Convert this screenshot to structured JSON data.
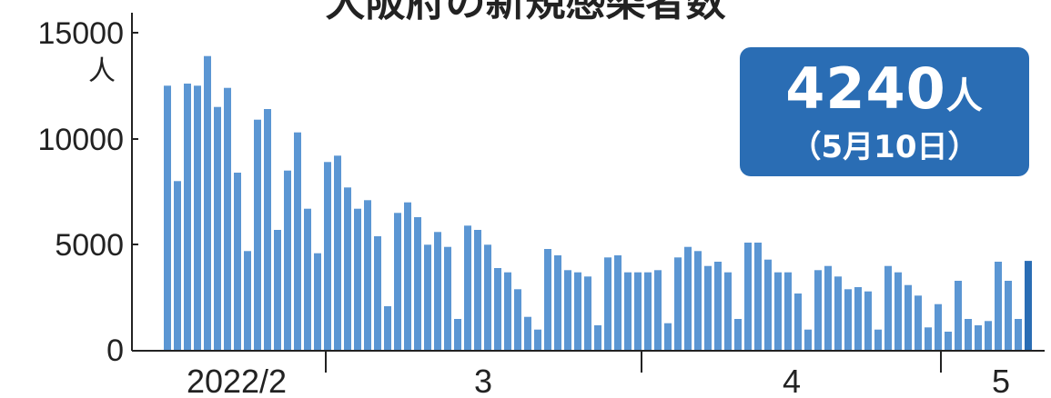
{
  "chart_data": {
    "type": "bar",
    "title": "大阪府の新規感染者数",
    "y_unit": "人",
    "ylim": [
      0,
      15000
    ],
    "yticks": [
      "0",
      "5000",
      "10000",
      "15000"
    ],
    "xtick_labels": [
      "2022/2",
      "3",
      "4",
      "5"
    ],
    "callout": {
      "value": "4240",
      "unit": "人",
      "date": "（5月10日）"
    },
    "series_color": "#5b96d3",
    "highlight_color": "#2a6db4",
    "values": [
      12500,
      8000,
      12600,
      12500,
      13900,
      11500,
      12400,
      8400,
      4700,
      10900,
      11400,
      5700,
      8500,
      10300,
      6700,
      4600,
      8900,
      9200,
      7700,
      6700,
      7100,
      5400,
      2100,
      6500,
      7000,
      6300,
      5000,
      5600,
      4900,
      1500,
      5900,
      5700,
      5000,
      3900,
      3700,
      2900,
      1600,
      1000,
      4800,
      4500,
      3800,
      3700,
      3500,
      1200,
      4400,
      4500,
      3700,
      3700,
      3700,
      3800,
      1300,
      4400,
      4900,
      4700,
      4000,
      4200,
      3700,
      1500,
      5100,
      5100,
      4300,
      3700,
      3700,
      2700,
      1000,
      3800,
      4000,
      3500,
      2900,
      3000,
      2800,
      1000,
      4000,
      3700,
      3100,
      2600,
      1100,
      2200,
      900,
      3300,
      1500,
      1200,
      1400,
      4200,
      3300,
      1500,
      4240
    ]
  }
}
